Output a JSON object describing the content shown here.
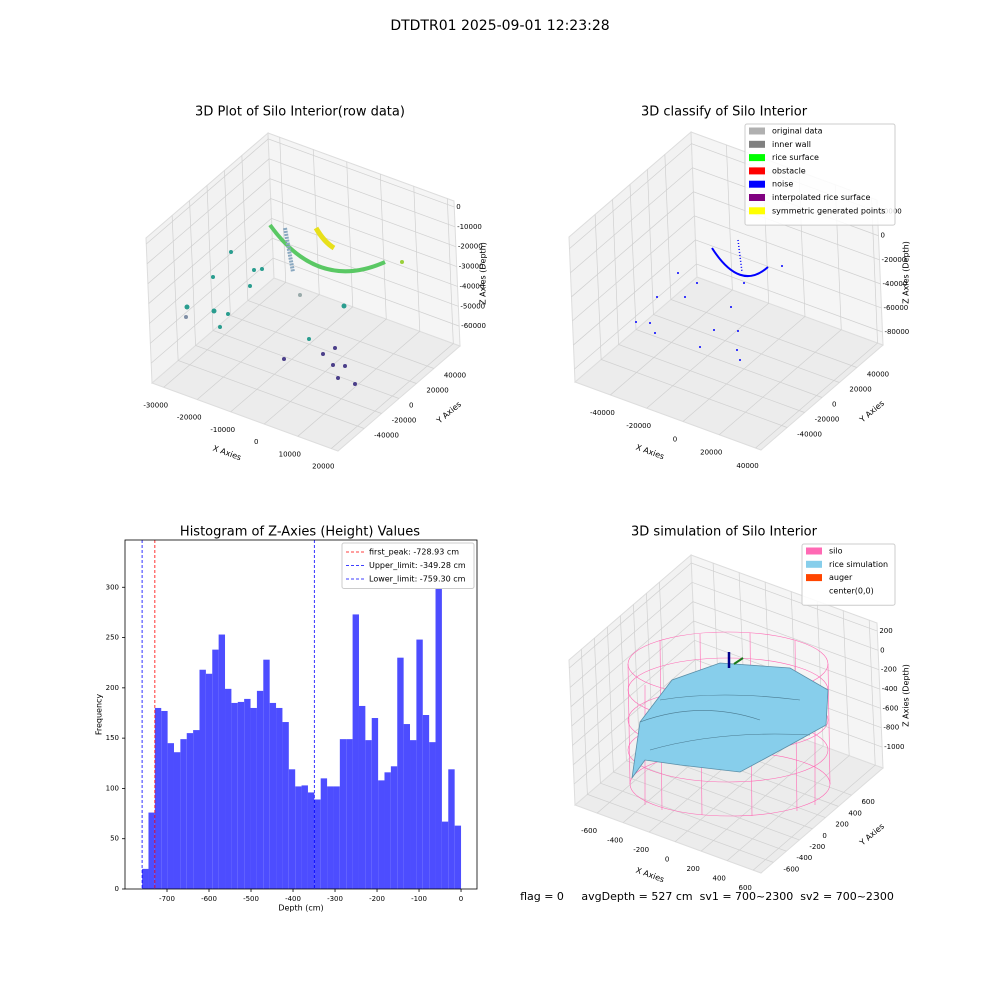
{
  "title": "DTDTR01 2025-09-01 12:23:28",
  "chart_data": [
    {
      "type": "scatter3d",
      "title": "3D Plot of Silo Interior(row data)",
      "xlabel": "X Axies",
      "ylabel": "Y Axies",
      "zlabel": "Z Axies (Depth)",
      "xlim": [
        -33500,
        22000
      ],
      "ylim": [
        -70000,
        70000
      ],
      "zlim": [
        -70000,
        3000
      ],
      "xticks": [
        -30000,
        -20000,
        -10000,
        0,
        10000,
        20000
      ],
      "yticks": [
        -40000,
        -20000,
        0,
        20000,
        40000
      ],
      "zticks": [
        0,
        -10000,
        -20000,
        -30000,
        -40000,
        -50000,
        -60000
      ]
    },
    {
      "type": "scatter3d",
      "title": "3D classify of Silo Interior",
      "xlabel": "X Axies",
      "ylabel": "Y Axies",
      "zlabel": "Z Axies (Depth)",
      "xlim": [
        -59500,
        43000
      ],
      "ylim": [
        -70000,
        70000
      ],
      "zlim": [
        -90800,
        29700
      ],
      "xticks": [
        -40000,
        -20000,
        0,
        20000,
        40000
      ],
      "yticks": [
        -40000,
        -20000,
        0,
        20000,
        40000
      ],
      "zticks": [
        20000,
        0,
        -20000,
        -40000,
        -60000,
        -80000
      ],
      "legend": [
        {
          "name": "original data",
          "color": "#b0b0b0"
        },
        {
          "name": "inner wall",
          "color": "#808080"
        },
        {
          "name": "rice surface",
          "color": "#00ff00"
        },
        {
          "name": "obstacle",
          "color": "#ff0000"
        },
        {
          "name": "noise",
          "color": "#0000ff"
        },
        {
          "name": "interpolated rice surface",
          "color": "#800080"
        },
        {
          "name": "symmetric generated points",
          "color": "#ffff00"
        }
      ]
    },
    {
      "type": "histogram",
      "title": "Histogram of Z-Axies (Height) Values",
      "xlabel": "Depth (cm)",
      "ylabel": "Frequency",
      "color": "#4d4dff",
      "bins": [
        -759.3,
        -744.11,
        -728.93,
        -713.74,
        -698.56,
        -683.37,
        -668.18,
        -653.0,
        -637.81,
        -622.63,
        -607.44,
        -592.25,
        -577.07,
        -561.88,
        -546.7,
        -531.51,
        -516.32,
        -501.14,
        -485.95,
        -470.77,
        -455.58,
        -440.39,
        -425.21,
        -410.02,
        -394.84,
        -379.65,
        -364.46,
        -349.28,
        -334.09,
        -318.91,
        -303.72,
        -288.53,
        -273.35,
        -258.16,
        -242.98,
        -227.79,
        -212.6,
        -197.42,
        -182.23,
        -167.05,
        -151.86,
        -136.67,
        -121.49,
        -106.3,
        -91.12,
        -75.93,
        -60.74,
        -45.56,
        -30.37,
        -15.19,
        0
      ],
      "values": [
        20,
        76,
        180,
        177,
        145,
        136,
        149,
        155,
        158,
        218,
        214,
        238,
        253,
        199,
        185,
        186,
        189,
        180,
        197,
        228,
        185,
        180,
        166,
        119,
        102,
        103,
        96,
        89,
        110,
        102,
        102,
        149,
        149,
        273,
        182,
        148,
        170,
        108,
        116,
        122,
        230,
        164,
        148,
        248,
        173,
        146,
        327,
        67,
        119,
        63
      ],
      "xlim": [
        -800,
        38
      ],
      "ylim": [
        0,
        347
      ],
      "xticks": [
        -700,
        -600,
        -500,
        -400,
        -300,
        -200,
        -100,
        0
      ],
      "yticks": [
        0,
        50,
        100,
        150,
        200,
        250,
        300
      ],
      "lines": [
        {
          "label": "first_peak: -728.93 cm",
          "value": -728.93,
          "color": "#ff0000"
        },
        {
          "label": "Upper_limit: -349.28 cm",
          "value": -349.28,
          "color": "#0000ff"
        },
        {
          "label": "Lower_limit: -759.30 cm",
          "value": -759.3,
          "color": "#0000ff"
        }
      ],
      "legend_position": "upper right"
    },
    {
      "type": "surface3d",
      "title": "3D simulation of Silo Interior",
      "xlabel": "X Axies",
      "ylabel": "Y Axies",
      "zlabel": "Z Axies (Depth)",
      "xlim": [
        -770,
        660
      ],
      "ylim": [
        -790,
        1085
      ],
      "zlim": [
        -1217,
        283
      ],
      "xticks": [
        -600,
        -400,
        -200,
        0,
        200,
        400,
        600
      ],
      "yticks": [
        -600,
        -400,
        -200,
        0,
        200,
        400,
        600
      ],
      "zticks": [
        200,
        0,
        -200,
        -400,
        -600,
        -800,
        -1000
      ],
      "legend": [
        {
          "name": "silo",
          "color": "#ff69b4"
        },
        {
          "name": "rice simulation",
          "color": "#87ceeb"
        },
        {
          "name": "auger",
          "color": "#ff4500"
        },
        {
          "name": "center(0,0)",
          "color": "#ffffff"
        }
      ]
    }
  ],
  "status": "flag = 0     avgDepth = 527 cm  sv1 = 700~2300  sv2 = 700~2300"
}
